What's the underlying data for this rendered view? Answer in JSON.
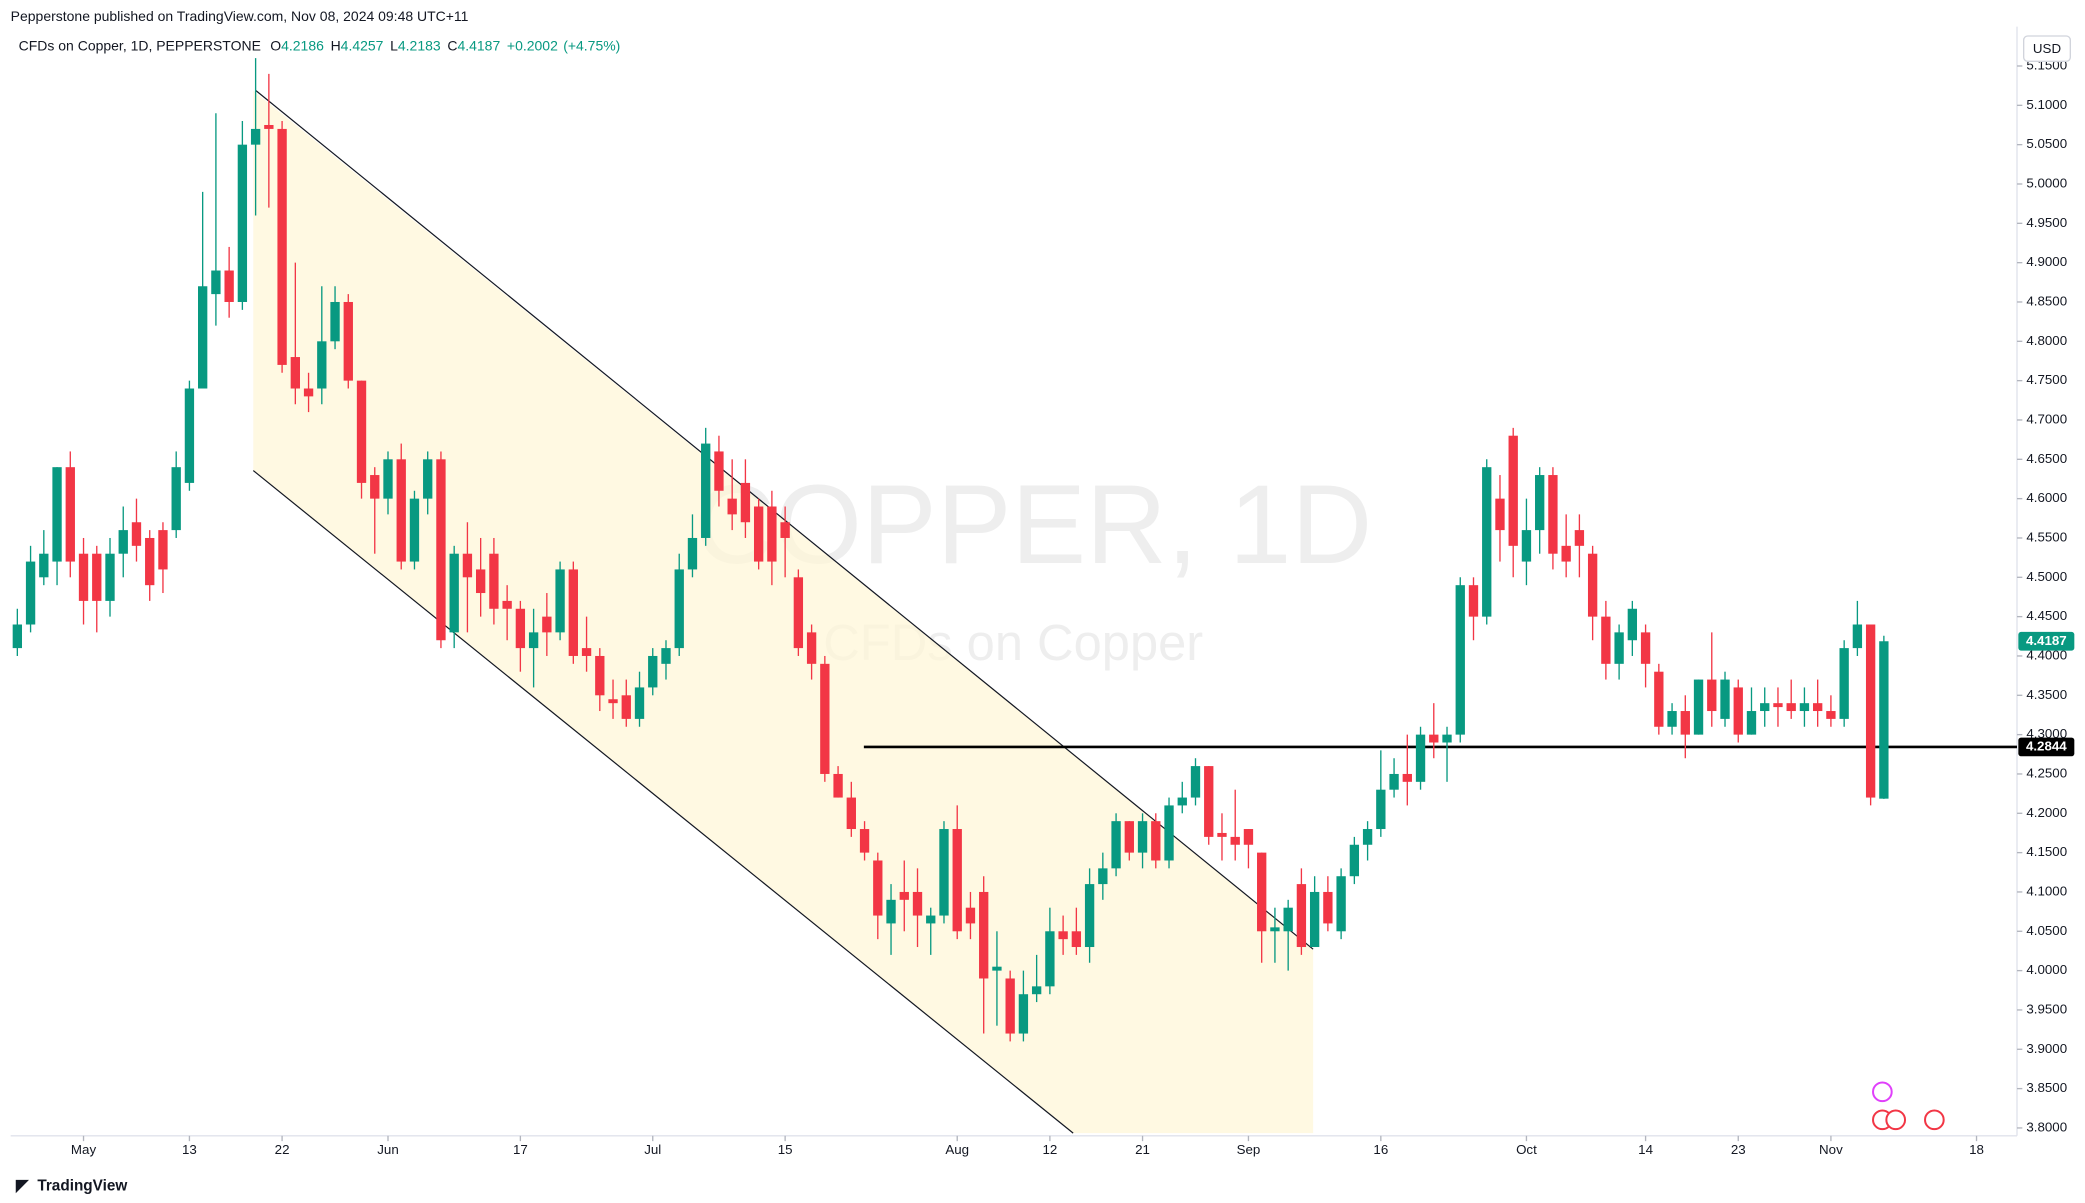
{
  "publisher": "Pepperstone published on TradingView.com, Nov 08, 2024 09:48 UTC+11",
  "footer": "TradingView",
  "currency": "USD",
  "chart_data": {
    "type": "candlestick",
    "title": "COPPER, 1D",
    "subtitle": "CFDs on Copper",
    "header": {
      "symbol": "CFDs on Copper, 1D, PEPPERSTONE",
      "labels": [
        "O",
        "H",
        "L",
        "C"
      ],
      "change": "+0.2002",
      "change_pct": "(+4.75%)"
    },
    "up_color": "#089981",
    "down_color": "#f23645",
    "ylim": [
      3.79,
      5.2
    ],
    "yticks": [
      {
        "value": 5.15,
        "label": "5.1500"
      },
      {
        "value": 5.1,
        "label": "5.1000"
      },
      {
        "value": 5.05,
        "label": "5.0500"
      },
      {
        "value": 5.0,
        "label": "5.0000"
      },
      {
        "value": 4.95,
        "label": "4.9500"
      },
      {
        "value": 4.9,
        "label": "4.9000"
      },
      {
        "value": 4.85,
        "label": "4.8500"
      },
      {
        "value": 4.8,
        "label": "4.8000"
      },
      {
        "value": 4.75,
        "label": "4.7500"
      },
      {
        "value": 4.7,
        "label": "4.7000"
      },
      {
        "value": 4.65,
        "label": "4.6500"
      },
      {
        "value": 4.6,
        "label": "4.6000"
      },
      {
        "value": 4.55,
        "label": "4.5500"
      },
      {
        "value": 4.5,
        "label": "4.5000"
      },
      {
        "value": 4.45,
        "label": "4.4500"
      },
      {
        "value": 4.4,
        "label": "4.4000"
      },
      {
        "value": 4.35,
        "label": "4.3500"
      },
      {
        "value": 4.3,
        "label": "4.3000"
      },
      {
        "value": 4.25,
        "label": "4.2500"
      },
      {
        "value": 4.2,
        "label": "4.2000"
      },
      {
        "value": 4.15,
        "label": "4.1500"
      },
      {
        "value": 4.1,
        "label": "4.1000"
      },
      {
        "value": 4.05,
        "label": "4.0500"
      },
      {
        "value": 4.0,
        "label": "4.0000"
      },
      {
        "value": 3.95,
        "label": "3.9500"
      },
      {
        "value": 3.9,
        "label": "3.9000"
      },
      {
        "value": 3.85,
        "label": "3.8500"
      },
      {
        "value": 3.8,
        "label": "3.8000"
      }
    ],
    "xticks": [
      {
        "value": 5,
        "label": "May"
      },
      {
        "value": 13,
        "label": "13"
      },
      {
        "value": 20,
        "label": "22"
      },
      {
        "value": 28,
        "label": "Jun"
      },
      {
        "value": 38,
        "label": "17"
      },
      {
        "value": 48,
        "label": "Jul"
      },
      {
        "value": 58,
        "label": "15"
      },
      {
        "value": 71,
        "label": "Aug"
      },
      {
        "value": 78,
        "label": "12"
      },
      {
        "value": 85,
        "label": "21"
      },
      {
        "value": 93,
        "label": "Sep"
      },
      {
        "value": 103,
        "label": "16"
      },
      {
        "value": 114,
        "label": "Oct"
      },
      {
        "value": 123,
        "label": "14"
      },
      {
        "value": 130,
        "label": "23"
      },
      {
        "value": 137,
        "label": "Nov"
      },
      {
        "value": 148,
        "label": "18"
      }
    ],
    "hline": 4.2844,
    "ohlc": [
      [
        4.41,
        4.46,
        4.4,
        4.44
      ],
      [
        4.44,
        4.54,
        4.43,
        4.52
      ],
      [
        4.5,
        4.56,
        4.49,
        4.53
      ],
      [
        4.52,
        4.64,
        4.49,
        4.64
      ],
      [
        4.64,
        4.66,
        4.5,
        4.52
      ],
      [
        4.53,
        4.55,
        4.44,
        4.47
      ],
      [
        4.53,
        4.54,
        4.43,
        4.47
      ],
      [
        4.47,
        4.55,
        4.45,
        4.53
      ],
      [
        4.53,
        4.59,
        4.5,
        4.56
      ],
      [
        4.57,
        4.6,
        4.52,
        4.54
      ],
      [
        4.55,
        4.56,
        4.47,
        4.49
      ],
      [
        4.56,
        4.57,
        4.48,
        4.51
      ],
      [
        4.56,
        4.66,
        4.55,
        4.64
      ],
      [
        4.62,
        4.75,
        4.61,
        4.74
      ],
      [
        4.74,
        4.99,
        4.74,
        4.87
      ],
      [
        4.86,
        5.09,
        4.82,
        4.89
      ],
      [
        4.89,
        4.92,
        4.83,
        4.85
      ],
      [
        4.85,
        5.08,
        4.84,
        5.05
      ],
      [
        5.05,
        5.16,
        4.96,
        5.07
      ],
      [
        5.075,
        5.14,
        4.97,
        5.07
      ],
      [
        5.07,
        5.08,
        4.76,
        4.77
      ],
      [
        4.78,
        4.9,
        4.72,
        4.74
      ],
      [
        4.74,
        4.76,
        4.71,
        4.73
      ],
      [
        4.74,
        4.87,
        4.72,
        4.8
      ],
      [
        4.8,
        4.87,
        4.79,
        4.85
      ],
      [
        4.85,
        4.86,
        4.74,
        4.75
      ],
      [
        4.75,
        4.75,
        4.6,
        4.62
      ],
      [
        4.63,
        4.64,
        4.53,
        4.6
      ],
      [
        4.6,
        4.66,
        4.58,
        4.65
      ],
      [
        4.65,
        4.67,
        4.51,
        4.52
      ],
      [
        4.52,
        4.61,
        4.51,
        4.6
      ],
      [
        4.6,
        4.66,
        4.58,
        4.65
      ],
      [
        4.65,
        4.66,
        4.41,
        4.42
      ],
      [
        4.43,
        4.54,
        4.41,
        4.53
      ],
      [
        4.53,
        4.57,
        4.43,
        4.5
      ],
      [
        4.51,
        4.55,
        4.45,
        4.48
      ],
      [
        4.53,
        4.55,
        4.44,
        4.46
      ],
      [
        4.47,
        4.49,
        4.42,
        4.46
      ],
      [
        4.46,
        4.47,
        4.38,
        4.41
      ],
      [
        4.41,
        4.46,
        4.36,
        4.43
      ],
      [
        4.45,
        4.48,
        4.4,
        4.43
      ],
      [
        4.43,
        4.52,
        4.42,
        4.51
      ],
      [
        4.51,
        4.52,
        4.39,
        4.4
      ],
      [
        4.41,
        4.45,
        4.38,
        4.4
      ],
      [
        4.4,
        4.41,
        4.33,
        4.35
      ],
      [
        4.345,
        4.37,
        4.32,
        4.34
      ],
      [
        4.35,
        4.37,
        4.31,
        4.32
      ],
      [
        4.32,
        4.38,
        4.31,
        4.36
      ],
      [
        4.36,
        4.41,
        4.35,
        4.4
      ],
      [
        4.39,
        4.42,
        4.37,
        4.41
      ],
      [
        4.41,
        4.53,
        4.4,
        4.51
      ],
      [
        4.51,
        4.58,
        4.5,
        4.55
      ],
      [
        4.55,
        4.69,
        4.54,
        4.67
      ],
      [
        4.66,
        4.68,
        4.59,
        4.61
      ],
      [
        4.6,
        4.65,
        4.56,
        4.58
      ],
      [
        4.62,
        4.65,
        4.55,
        4.57
      ],
      [
        4.59,
        4.6,
        4.51,
        4.52
      ],
      [
        4.59,
        4.61,
        4.49,
        4.52
      ],
      [
        4.57,
        4.59,
        4.5,
        4.55
      ],
      [
        4.5,
        4.51,
        4.4,
        4.41
      ],
      [
        4.43,
        4.44,
        4.37,
        4.39
      ],
      [
        4.39,
        4.4,
        4.24,
        4.25
      ],
      [
        4.25,
        4.26,
        4.22,
        4.22
      ],
      [
        4.22,
        4.24,
        4.17,
        4.18
      ],
      [
        4.18,
        4.19,
        4.14,
        4.15
      ],
      [
        4.14,
        4.15,
        4.04,
        4.07
      ],
      [
        4.06,
        4.11,
        4.02,
        4.09
      ],
      [
        4.1,
        4.14,
        4.05,
        4.09
      ],
      [
        4.1,
        4.13,
        4.03,
        4.07
      ],
      [
        4.06,
        4.08,
        4.02,
        4.07
      ],
      [
        4.07,
        4.19,
        4.06,
        4.18
      ],
      [
        4.18,
        4.21,
        4.04,
        4.05
      ],
      [
        4.08,
        4.1,
        4.04,
        4.06
      ],
      [
        4.1,
        4.12,
        3.92,
        3.99
      ],
      [
        4.0,
        4.05,
        3.93,
        4.005
      ],
      [
        3.99,
        4.0,
        3.91,
        3.92
      ],
      [
        3.92,
        4.0,
        3.91,
        3.97
      ],
      [
        3.97,
        4.02,
        3.96,
        3.98
      ],
      [
        3.98,
        4.08,
        3.97,
        4.05
      ],
      [
        4.05,
        4.07,
        4.02,
        4.04
      ],
      [
        4.05,
        4.08,
        4.02,
        4.03
      ],
      [
        4.03,
        4.13,
        4.01,
        4.11
      ],
      [
        4.11,
        4.15,
        4.09,
        4.13
      ],
      [
        4.13,
        4.2,
        4.12,
        4.19
      ],
      [
        4.19,
        4.19,
        4.14,
        4.15
      ],
      [
        4.15,
        4.2,
        4.13,
        4.19
      ],
      [
        4.19,
        4.2,
        4.13,
        4.14
      ],
      [
        4.14,
        4.22,
        4.13,
        4.21
      ],
      [
        4.21,
        4.24,
        4.2,
        4.22
      ],
      [
        4.22,
        4.27,
        4.21,
        4.26
      ],
      [
        4.26,
        4.26,
        4.16,
        4.17
      ],
      [
        4.175,
        4.2,
        4.14,
        4.17
      ],
      [
        4.17,
        4.23,
        4.14,
        4.16
      ],
      [
        4.18,
        4.18,
        4.13,
        4.16
      ],
      [
        4.15,
        4.15,
        4.01,
        4.05
      ],
      [
        4.05,
        4.08,
        4.01,
        4.055
      ],
      [
        4.05,
        4.09,
        4.0,
        4.08
      ],
      [
        4.11,
        4.13,
        4.02,
        4.03
      ],
      [
        4.03,
        4.12,
        4.03,
        4.1
      ],
      [
        4.1,
        4.12,
        4.05,
        4.06
      ],
      [
        4.05,
        4.13,
        4.04,
        4.12
      ],
      [
        4.12,
        4.17,
        4.11,
        4.16
      ],
      [
        4.16,
        4.19,
        4.14,
        4.18
      ],
      [
        4.18,
        4.28,
        4.17,
        4.23
      ],
      [
        4.23,
        4.27,
        4.22,
        4.25
      ],
      [
        4.25,
        4.3,
        4.21,
        4.24
      ],
      [
        4.24,
        4.31,
        4.23,
        4.3
      ],
      [
        4.3,
        4.34,
        4.27,
        4.29
      ],
      [
        4.29,
        4.31,
        4.24,
        4.3
      ],
      [
        4.3,
        4.5,
        4.29,
        4.49
      ],
      [
        4.49,
        4.5,
        4.42,
        4.45
      ],
      [
        4.45,
        4.65,
        4.44,
        4.64
      ],
      [
        4.6,
        4.63,
        4.52,
        4.56
      ],
      [
        4.68,
        4.69,
        4.5,
        4.54
      ],
      [
        4.52,
        4.6,
        4.49,
        4.56
      ],
      [
        4.56,
        4.64,
        4.53,
        4.63
      ],
      [
        4.63,
        4.64,
        4.51,
        4.53
      ],
      [
        4.54,
        4.58,
        4.5,
        4.52
      ],
      [
        4.56,
        4.58,
        4.5,
        4.54
      ],
      [
        4.53,
        4.54,
        4.42,
        4.45
      ],
      [
        4.45,
        4.47,
        4.37,
        4.39
      ],
      [
        4.39,
        4.44,
        4.37,
        4.43
      ],
      [
        4.42,
        4.47,
        4.4,
        4.46
      ],
      [
        4.43,
        4.44,
        4.36,
        4.39
      ],
      [
        4.38,
        4.39,
        4.3,
        4.31
      ],
      [
        4.31,
        4.34,
        4.3,
        4.33
      ],
      [
        4.33,
        4.35,
        4.27,
        4.3
      ],
      [
        4.3,
        4.37,
        4.3,
        4.37
      ],
      [
        4.37,
        4.43,
        4.31,
        4.33
      ],
      [
        4.32,
        4.38,
        4.31,
        4.37
      ],
      [
        4.36,
        4.37,
        4.29,
        4.3
      ],
      [
        4.3,
        4.36,
        4.3,
        4.33
      ],
      [
        4.33,
        4.36,
        4.31,
        4.34
      ],
      [
        4.34,
        4.36,
        4.31,
        4.335
      ],
      [
        4.34,
        4.37,
        4.32,
        4.33
      ],
      [
        4.33,
        4.36,
        4.31,
        4.34
      ],
      [
        4.34,
        4.37,
        4.31,
        4.33
      ],
      [
        4.33,
        4.35,
        4.31,
        4.32
      ],
      [
        4.32,
        4.42,
        4.31,
        4.41
      ],
      [
        4.41,
        4.47,
        4.4,
        4.44
      ],
      [
        4.44,
        4.44,
        4.21,
        4.22
      ],
      [
        4.2186,
        4.4257,
        4.2183,
        4.4187
      ]
    ]
  }
}
